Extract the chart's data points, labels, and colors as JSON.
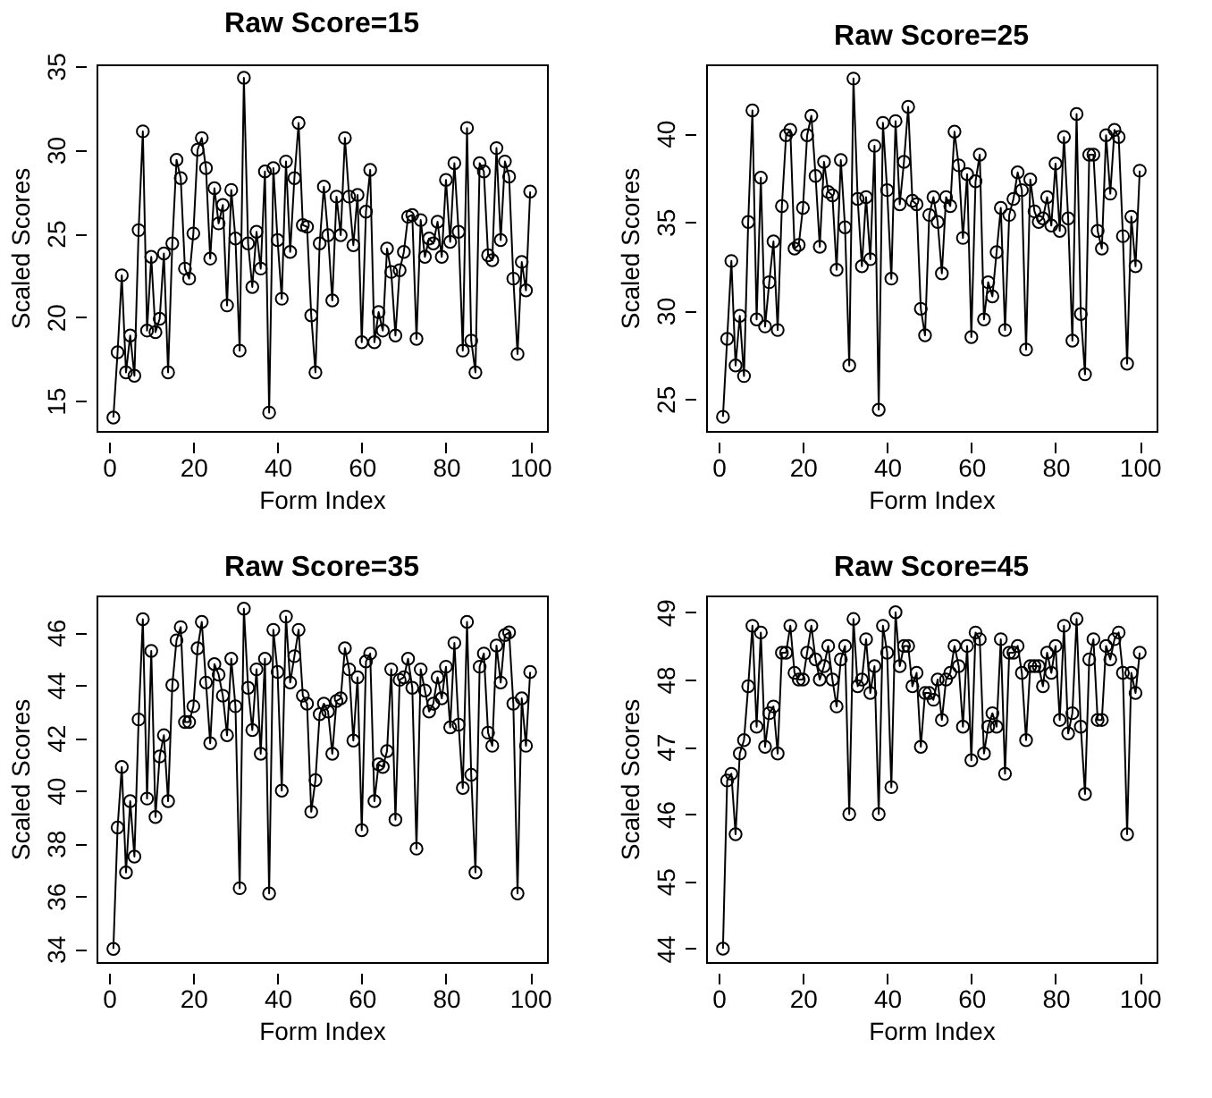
{
  "chart_data": [
    {
      "type": "line",
      "title": "Raw Score=15",
      "xlabel": "Form Index",
      "ylabel": "Scaled Scores",
      "marker": "circle",
      "x": [
        1,
        2,
        3,
        4,
        5,
        6,
        7,
        8,
        9,
        10,
        11,
        12,
        13,
        14,
        15,
        16,
        17,
        18,
        19,
        20,
        21,
        22,
        23,
        24,
        25,
        26,
        27,
        28,
        29,
        30,
        31,
        32,
        33,
        34,
        35,
        36,
        37,
        38,
        39,
        40,
        41,
        42,
        43,
        44,
        45,
        46,
        47,
        48,
        49,
        50,
        51,
        52,
        53,
        54,
        55,
        56,
        57,
        58,
        59,
        60,
        61,
        62,
        63,
        64,
        65,
        66,
        67,
        68,
        69,
        70,
        71,
        72,
        73,
        74,
        75,
        76,
        77,
        78,
        79,
        80,
        81,
        82,
        83,
        84,
        85,
        86,
        87,
        88,
        89,
        90,
        91,
        92,
        93,
        94,
        95,
        96,
        97,
        98,
        99,
        100
      ],
      "series": [
        {
          "color": "#000000",
          "values": [
            14.0,
            17.9,
            22.5,
            16.7,
            18.9,
            16.5,
            25.2,
            31.1,
            19.2,
            23.6,
            19.1,
            19.9,
            23.8,
            16.7,
            24.4,
            29.4,
            28.3,
            22.9,
            22.3,
            25.0,
            30.0,
            30.7,
            28.9,
            23.5,
            27.7,
            25.6,
            26.7,
            20.7,
            27.6,
            24.7,
            18.0,
            34.3,
            24.4,
            21.8,
            25.1,
            22.9,
            28.7,
            14.3,
            28.9,
            24.6,
            21.1,
            29.3,
            23.9,
            28.3,
            31.6,
            25.5,
            25.4,
            20.1,
            16.7,
            24.4,
            27.8,
            24.9,
            21.0,
            27.2,
            24.9,
            30.7,
            27.2,
            24.3,
            27.3,
            18.5,
            26.3,
            28.8,
            18.5,
            20.3,
            19.2,
            24.1,
            22.7,
            18.9,
            22.8,
            23.9,
            26.0,
            26.1,
            18.7,
            25.8,
            23.6,
            24.7,
            24.4,
            25.7,
            23.6,
            28.2,
            24.5,
            29.2,
            25.1,
            18.0,
            31.3,
            18.6,
            16.7,
            29.2,
            28.7,
            23.7,
            23.4,
            30.1,
            24.6,
            29.3,
            28.4,
            22.3,
            17.8,
            23.3,
            21.6,
            27.5
          ]
        }
      ],
      "xlim": [
        -3,
        104
      ],
      "xticks": [
        0,
        20,
        40,
        60,
        80,
        100
      ],
      "ylim": [
        13.2,
        35.1
      ],
      "yticks": [
        15,
        20,
        25,
        30,
        35
      ]
    },
    {
      "type": "line",
      "title": "Raw Score=25",
      "xlabel": "Form Index",
      "ylabel": "Scaled Scores",
      "marker": "circle",
      "x": [
        1,
        2,
        3,
        4,
        5,
        6,
        7,
        8,
        9,
        10,
        11,
        12,
        13,
        14,
        15,
        16,
        17,
        18,
        19,
        20,
        21,
        22,
        23,
        24,
        25,
        26,
        27,
        28,
        29,
        30,
        31,
        32,
        33,
        34,
        35,
        36,
        37,
        38,
        39,
        40,
        41,
        42,
        43,
        44,
        45,
        46,
        47,
        48,
        49,
        50,
        51,
        52,
        53,
        54,
        55,
        56,
        57,
        58,
        59,
        60,
        61,
        62,
        63,
        64,
        65,
        66,
        67,
        68,
        69,
        70,
        71,
        72,
        73,
        74,
        75,
        76,
        77,
        78,
        79,
        80,
        81,
        82,
        83,
        84,
        85,
        86,
        87,
        88,
        89,
        90,
        91,
        92,
        93,
        94,
        95,
        96,
        97,
        98,
        99,
        100
      ],
      "series": [
        {
          "color": "#000000",
          "values": [
            24.0,
            28.4,
            32.8,
            26.9,
            29.7,
            26.3,
            35.0,
            41.3,
            29.5,
            37.5,
            29.1,
            31.6,
            33.9,
            28.9,
            35.9,
            39.9,
            40.2,
            33.5,
            33.7,
            35.8,
            39.9,
            41.0,
            37.6,
            33.6,
            38.4,
            36.7,
            36.5,
            32.3,
            38.5,
            34.7,
            26.9,
            43.1,
            36.3,
            32.5,
            36.4,
            32.9,
            39.3,
            24.4,
            40.6,
            36.8,
            31.8,
            40.7,
            36.0,
            38.4,
            41.5,
            36.2,
            36.0,
            30.1,
            28.6,
            35.4,
            36.4,
            35.0,
            32.1,
            36.4,
            35.9,
            40.1,
            38.2,
            34.1,
            37.7,
            28.5,
            37.3,
            38.8,
            29.5,
            31.6,
            30.8,
            33.3,
            35.8,
            28.9,
            35.4,
            36.3,
            37.8,
            36.8,
            27.8,
            37.4,
            35.6,
            35.0,
            35.2,
            36.4,
            34.8,
            38.3,
            34.5,
            39.8,
            35.2,
            28.3,
            41.1,
            29.8,
            26.4,
            38.8,
            38.8,
            34.5,
            33.5,
            39.9,
            36.6,
            40.2,
            39.8,
            34.2,
            27.0,
            35.3,
            32.5,
            37.9
          ]
        }
      ],
      "xlim": [
        -3,
        104
      ],
      "xticks": [
        0,
        20,
        40,
        60,
        80,
        100
      ],
      "ylim": [
        23.2,
        43.9
      ],
      "yticks": [
        25,
        30,
        35,
        40
      ]
    },
    {
      "type": "line",
      "title": "Raw Score=35",
      "xlabel": "Form Index",
      "ylabel": "Scaled Scores",
      "marker": "circle",
      "x": [
        1,
        2,
        3,
        4,
        5,
        6,
        7,
        8,
        9,
        10,
        11,
        12,
        13,
        14,
        15,
        16,
        17,
        18,
        19,
        20,
        21,
        22,
        23,
        24,
        25,
        26,
        27,
        28,
        29,
        30,
        31,
        32,
        33,
        34,
        35,
        36,
        37,
        38,
        39,
        40,
        41,
        42,
        43,
        44,
        45,
        46,
        47,
        48,
        49,
        50,
        51,
        52,
        53,
        54,
        55,
        56,
        57,
        58,
        59,
        60,
        61,
        62,
        63,
        64,
        65,
        66,
        67,
        68,
        69,
        70,
        71,
        72,
        73,
        74,
        75,
        76,
        77,
        78,
        79,
        80,
        81,
        82,
        83,
        84,
        85,
        86,
        87,
        88,
        89,
        90,
        91,
        92,
        93,
        94,
        95,
        96,
        97,
        98,
        99,
        100
      ],
      "series": [
        {
          "color": "#000000",
          "values": [
            34.0,
            38.6,
            40.9,
            36.9,
            39.6,
            37.5,
            42.7,
            46.5,
            39.7,
            45.3,
            39.0,
            41.3,
            42.1,
            39.6,
            44.0,
            45.7,
            46.2,
            42.6,
            42.6,
            43.2,
            45.4,
            46.4,
            44.1,
            41.8,
            44.8,
            44.4,
            43.6,
            42.1,
            45.0,
            43.2,
            36.3,
            46.9,
            43.9,
            42.3,
            44.6,
            41.4,
            45.0,
            36.1,
            46.1,
            44.5,
            40.0,
            46.6,
            44.1,
            45.1,
            46.1,
            43.6,
            43.3,
            39.2,
            40.4,
            42.9,
            43.3,
            43.0,
            41.4,
            43.4,
            43.5,
            45.4,
            44.6,
            41.9,
            44.3,
            38.5,
            44.9,
            45.2,
            39.6,
            41.0,
            40.9,
            41.5,
            44.6,
            38.9,
            44.2,
            44.3,
            45.0,
            43.9,
            37.8,
            44.6,
            43.8,
            43.0,
            43.3,
            44.3,
            43.5,
            44.7,
            42.4,
            45.6,
            42.5,
            40.1,
            46.4,
            40.6,
            36.9,
            44.7,
            45.2,
            42.2,
            41.7,
            45.5,
            44.1,
            45.9,
            46.0,
            43.3,
            36.1,
            43.5,
            41.7,
            44.5
          ]
        }
      ],
      "xlim": [
        -3,
        104
      ],
      "xticks": [
        0,
        20,
        40,
        60,
        80,
        100
      ],
      "ylim": [
        33.5,
        47.4
      ],
      "yticks": [
        34,
        36,
        38,
        40,
        42,
        44,
        46
      ]
    },
    {
      "type": "line",
      "title": "Raw Score=45",
      "xlabel": "Form Index",
      "ylabel": "Scaled Scores",
      "marker": "circle",
      "x": [
        1,
        2,
        3,
        4,
        5,
        6,
        7,
        8,
        9,
        10,
        11,
        12,
        13,
        14,
        15,
        16,
        17,
        18,
        19,
        20,
        21,
        22,
        23,
        24,
        25,
        26,
        27,
        28,
        29,
        30,
        31,
        32,
        33,
        34,
        35,
        36,
        37,
        38,
        39,
        40,
        41,
        42,
        43,
        44,
        45,
        46,
        47,
        48,
        49,
        50,
        51,
        52,
        53,
        54,
        55,
        56,
        57,
        58,
        59,
        60,
        61,
        62,
        63,
        64,
        65,
        66,
        67,
        68,
        69,
        70,
        71,
        72,
        73,
        74,
        75,
        76,
        77,
        78,
        79,
        80,
        81,
        82,
        83,
        84,
        85,
        86,
        87,
        88,
        89,
        90,
        91,
        92,
        93,
        94,
        95,
        96,
        97,
        98,
        99,
        100
      ],
      "series": [
        {
          "color": "#000000",
          "values": [
            44.0,
            46.5,
            46.6,
            45.7,
            46.9,
            47.1,
            47.9,
            48.8,
            47.3,
            48.7,
            47.0,
            47.5,
            47.6,
            46.9,
            48.4,
            48.4,
            48.8,
            48.1,
            48.0,
            48.0,
            48.4,
            48.8,
            48.3,
            48.0,
            48.2,
            48.5,
            48.0,
            47.6,
            48.3,
            48.5,
            46.0,
            48.9,
            47.9,
            48.0,
            48.6,
            47.8,
            48.2,
            46.0,
            48.8,
            48.4,
            46.4,
            49.0,
            48.2,
            48.5,
            48.5,
            47.9,
            48.1,
            47.0,
            47.8,
            47.8,
            47.7,
            48.0,
            47.4,
            48.0,
            48.1,
            48.5,
            48.2,
            47.3,
            48.5,
            46.8,
            48.7,
            48.6,
            46.9,
            47.3,
            47.5,
            47.3,
            48.6,
            46.6,
            48.4,
            48.4,
            48.5,
            48.1,
            47.1,
            48.2,
            48.2,
            48.2,
            47.9,
            48.4,
            48.1,
            48.5,
            47.4,
            48.8,
            47.2,
            47.5,
            48.9,
            47.3,
            46.3,
            48.3,
            48.6,
            47.4,
            47.4,
            48.5,
            48.3,
            48.6,
            48.7,
            48.1,
            45.7,
            48.1,
            47.8,
            48.4
          ]
        }
      ],
      "xlim": [
        -3,
        104
      ],
      "xticks": [
        0,
        20,
        40,
        60,
        80,
        100
      ],
      "ylim": [
        43.8,
        49.25
      ],
      "yticks": [
        44,
        45,
        46,
        47,
        48,
        49
      ]
    }
  ]
}
